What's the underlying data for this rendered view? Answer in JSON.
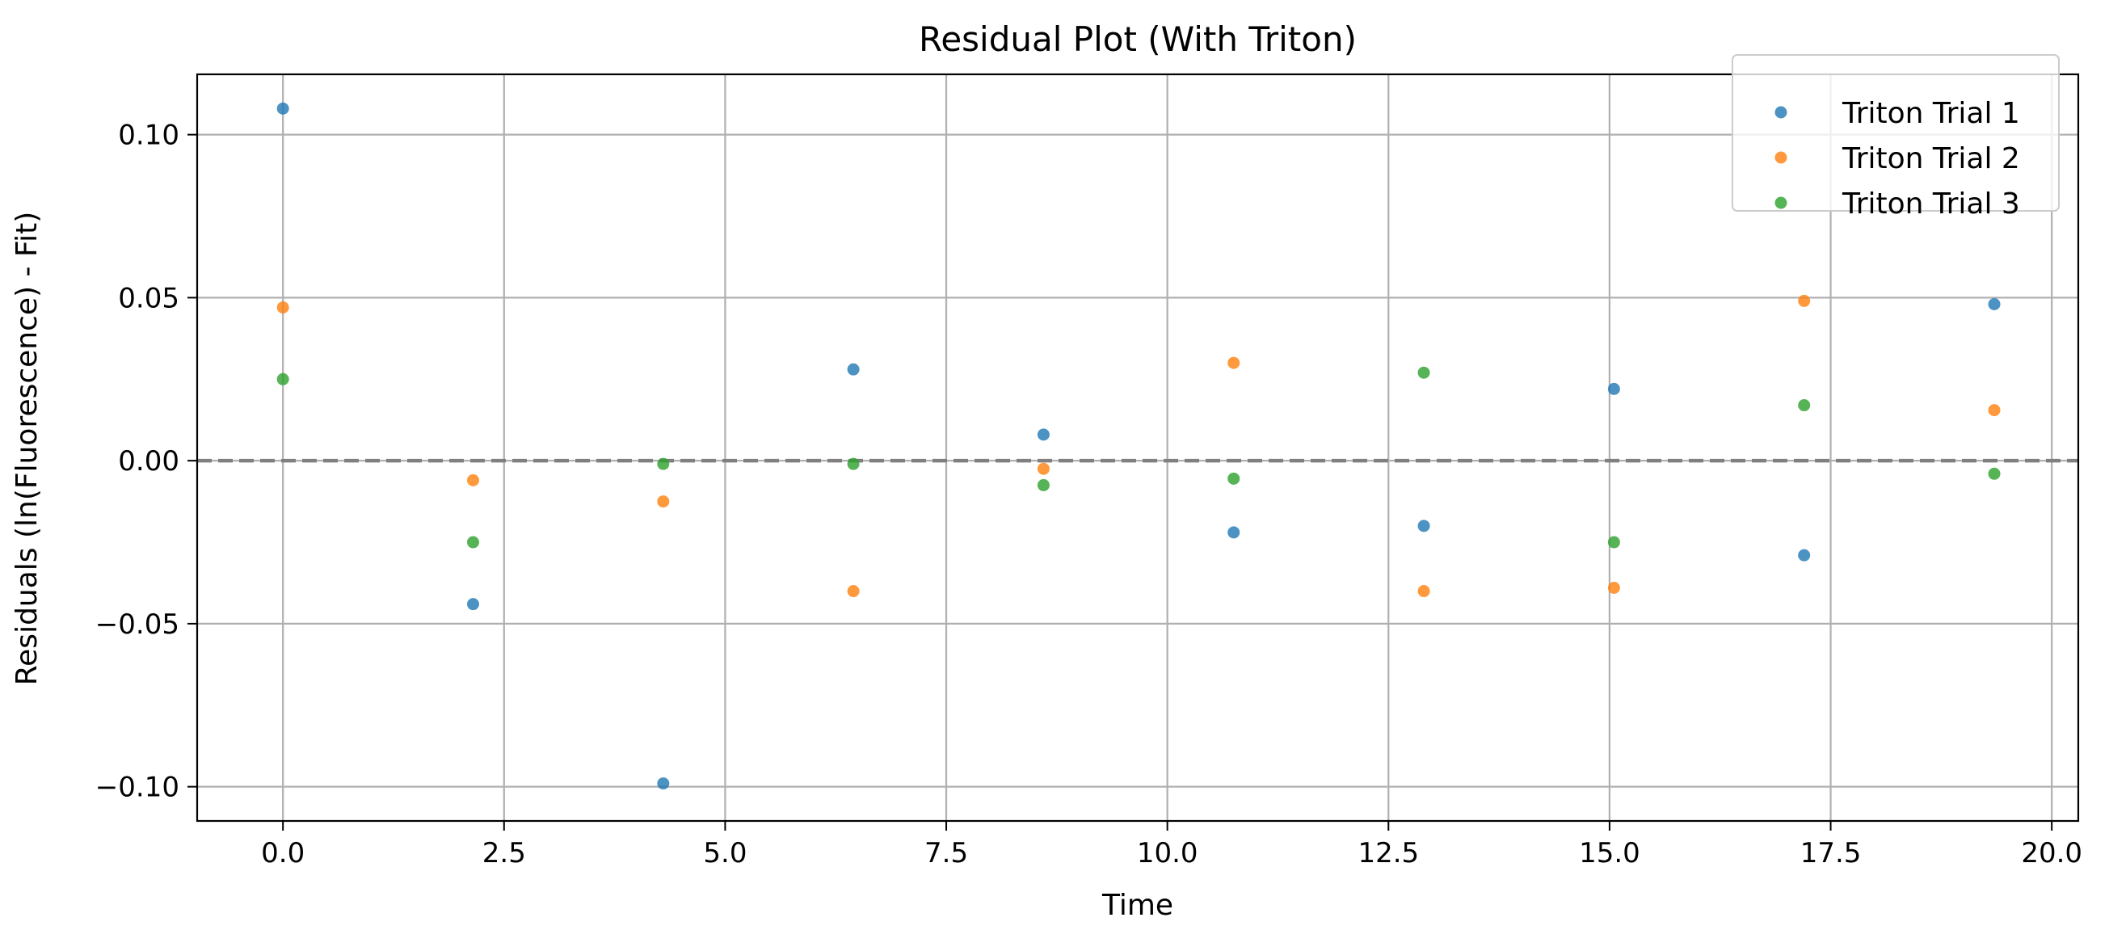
{
  "chart_data": {
    "type": "scatter",
    "title": "Residual Plot (With Triton)",
    "xlabel": "Time",
    "ylabel": "Residuals (ln(Fluorescence) - Fit)",
    "xlim": [
      -0.97,
      20.3
    ],
    "ylim": [
      -0.1105,
      0.1185
    ],
    "xticks": [
      0.0,
      2.5,
      5.0,
      7.5,
      10.0,
      12.5,
      15.0,
      17.5,
      20.0
    ],
    "xtick_labels": [
      "0.0",
      "2.5",
      "5.0",
      "7.5",
      "10.0",
      "12.5",
      "15.0",
      "17.5",
      "20.0"
    ],
    "yticks": [
      -0.1,
      -0.05,
      0.0,
      0.05,
      0.1
    ],
    "ytick_labels": [
      "−0.10",
      "−0.05",
      "0.00",
      "0.05",
      "0.10"
    ],
    "grid": true,
    "legend_position": "top-right",
    "reference_line": {
      "y": 0.0,
      "style": "dashed",
      "color": "#808080"
    },
    "x": [
      0.0,
      2.15,
      4.3,
      6.45,
      8.6,
      10.75,
      12.9,
      15.05,
      17.2,
      19.35
    ],
    "series": [
      {
        "name": "Triton Trial 1",
        "color": "#1f77b4",
        "values": [
          0.108,
          -0.044,
          -0.099,
          0.028,
          0.008,
          -0.022,
          -0.02,
          0.022,
          -0.029,
          0.048
        ]
      },
      {
        "name": "Triton Trial 2",
        "color": "#ff7f0e",
        "values": [
          0.047,
          -0.006,
          -0.0125,
          -0.04,
          -0.0025,
          0.03,
          -0.04,
          -0.039,
          0.049,
          0.0155
        ]
      },
      {
        "name": "Triton Trial 3",
        "color": "#2ca02c",
        "values": [
          0.025,
          -0.025,
          -0.001,
          -0.001,
          -0.0075,
          -0.0055,
          0.027,
          -0.025,
          0.017,
          -0.004
        ]
      }
    ]
  }
}
